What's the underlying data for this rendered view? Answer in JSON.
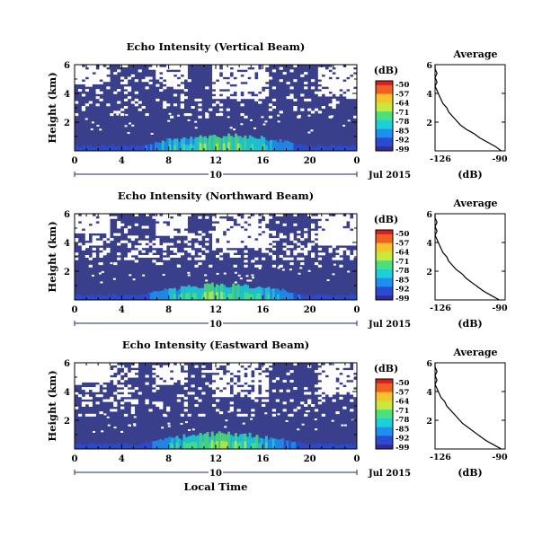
{
  "panel_labels": {
    "colorbar_unit": "(dB)",
    "date": "Jul 2015",
    "day": "10",
    "avg_title": "Average",
    "avg_xlabel": "(dB)",
    "xlabel_bottom": "Local Time"
  },
  "colors": {
    "background_field": "#3a3f8c",
    "missing": "#ffffff",
    "axis": "#000000",
    "day_line": "#1f2a6e",
    "colormap": [
      "#3b2b8f",
      "#2b4bd1",
      "#1f8ff0",
      "#1cd0d8",
      "#4de07a",
      "#c8e83a",
      "#f7c32a",
      "#f06020",
      "#d81f1f"
    ]
  },
  "chart_data": [
    {
      "type": "heatmap",
      "title": "Echo Intensity (Vertical Beam)",
      "ylabel": "Height (km)",
      "xlabel": "",
      "xticks": [
        "0",
        "4",
        "8",
        "12",
        "16",
        "20",
        "0"
      ],
      "xlim": [
        0,
        24
      ],
      "yticks": [
        "2",
        "4",
        "6"
      ],
      "ylim": [
        0,
        6
      ],
      "colorbar": {
        "ticks": [
          "-50",
          "-57",
          "-64",
          "-71",
          "-78",
          "-85",
          "-92",
          "-99"
        ],
        "range": [
          -99,
          -50
        ]
      },
      "average": {
        "xlim": [
          -126,
          -90
        ],
        "xticks": [
          "-126",
          "-90"
        ],
        "yticks": [
          "2",
          "4",
          "6"
        ],
        "profile": [
          [
            0.0,
            -92
          ],
          [
            0.3,
            -95
          ],
          [
            0.6,
            -99
          ],
          [
            0.9,
            -103
          ],
          [
            1.2,
            -106
          ],
          [
            1.5,
            -110
          ],
          [
            1.8,
            -113
          ],
          [
            2.1,
            -115
          ],
          [
            2.4,
            -117
          ],
          [
            2.7,
            -119
          ],
          [
            3.0,
            -120
          ],
          [
            3.3,
            -122
          ],
          [
            3.6,
            -123
          ],
          [
            3.9,
            -124
          ],
          [
            4.2,
            -125
          ],
          [
            4.5,
            -126
          ],
          [
            4.8,
            -125
          ],
          [
            5.1,
            -126
          ],
          [
            5.4,
            -125
          ],
          [
            5.7,
            -126
          ],
          [
            6.0,
            -126
          ]
        ]
      }
    },
    {
      "type": "heatmap",
      "title": "Echo Intensity (Northward Beam)",
      "ylabel": "Height (km)",
      "xlabel": "",
      "xticks": [
        "0",
        "4",
        "8",
        "12",
        "16",
        "20",
        "0"
      ],
      "xlim": [
        0,
        24
      ],
      "yticks": [
        "2",
        "4",
        "6"
      ],
      "ylim": [
        0,
        6
      ],
      "colorbar": {
        "ticks": [
          "-50",
          "-57",
          "-64",
          "-71",
          "-78",
          "-85",
          "-92",
          "-99"
        ],
        "range": [
          -99,
          -50
        ]
      },
      "average": {
        "xlim": [
          -126,
          -90
        ],
        "xticks": [
          "-126",
          "-90"
        ],
        "yticks": [
          "2",
          "4",
          "6"
        ],
        "profile": [
          [
            0.0,
            -93
          ],
          [
            0.3,
            -97
          ],
          [
            0.6,
            -101
          ],
          [
            0.9,
            -104
          ],
          [
            1.2,
            -107
          ],
          [
            1.5,
            -110
          ],
          [
            1.8,
            -112
          ],
          [
            2.1,
            -115
          ],
          [
            2.4,
            -117
          ],
          [
            2.7,
            -119
          ],
          [
            3.0,
            -120
          ],
          [
            3.3,
            -122
          ],
          [
            3.6,
            -123
          ],
          [
            3.9,
            -124
          ],
          [
            4.2,
            -125
          ],
          [
            4.5,
            -126
          ],
          [
            4.8,
            -125
          ],
          [
            5.1,
            -126
          ],
          [
            5.4,
            -125
          ],
          [
            5.7,
            -126
          ],
          [
            6.0,
            -126
          ]
        ]
      }
    },
    {
      "type": "heatmap",
      "title": "Echo Intensity (Eastward Beam)",
      "ylabel": "Height (km)",
      "xlabel": "Local Time",
      "xticks": [
        "0",
        "4",
        "8",
        "12",
        "16",
        "20",
        "0"
      ],
      "xlim": [
        0,
        24
      ],
      "yticks": [
        "2",
        "4",
        "6"
      ],
      "ylim": [
        0,
        6
      ],
      "colorbar": {
        "ticks": [
          "-50",
          "-57",
          "-64",
          "-71",
          "-78",
          "-85",
          "-92",
          "-99"
        ],
        "range": [
          -99,
          -50
        ]
      },
      "average": {
        "xlim": [
          -126,
          -90
        ],
        "xticks": [
          "-126",
          "-90"
        ],
        "yticks": [
          "2",
          "4",
          "6"
        ],
        "profile": [
          [
            0.0,
            -92
          ],
          [
            0.3,
            -96
          ],
          [
            0.6,
            -100
          ],
          [
            0.9,
            -103
          ],
          [
            1.2,
            -106
          ],
          [
            1.5,
            -109
          ],
          [
            1.8,
            -112
          ],
          [
            2.1,
            -114
          ],
          [
            2.4,
            -116
          ],
          [
            2.7,
            -118
          ],
          [
            3.0,
            -120
          ],
          [
            3.3,
            -121
          ],
          [
            3.6,
            -123
          ],
          [
            3.9,
            -124
          ],
          [
            4.2,
            -125
          ],
          [
            4.5,
            -126
          ],
          [
            4.8,
            -125
          ],
          [
            5.1,
            -126
          ],
          [
            5.4,
            -125
          ],
          [
            5.7,
            -126
          ],
          [
            6.0,
            -126
          ]
        ]
      }
    }
  ]
}
